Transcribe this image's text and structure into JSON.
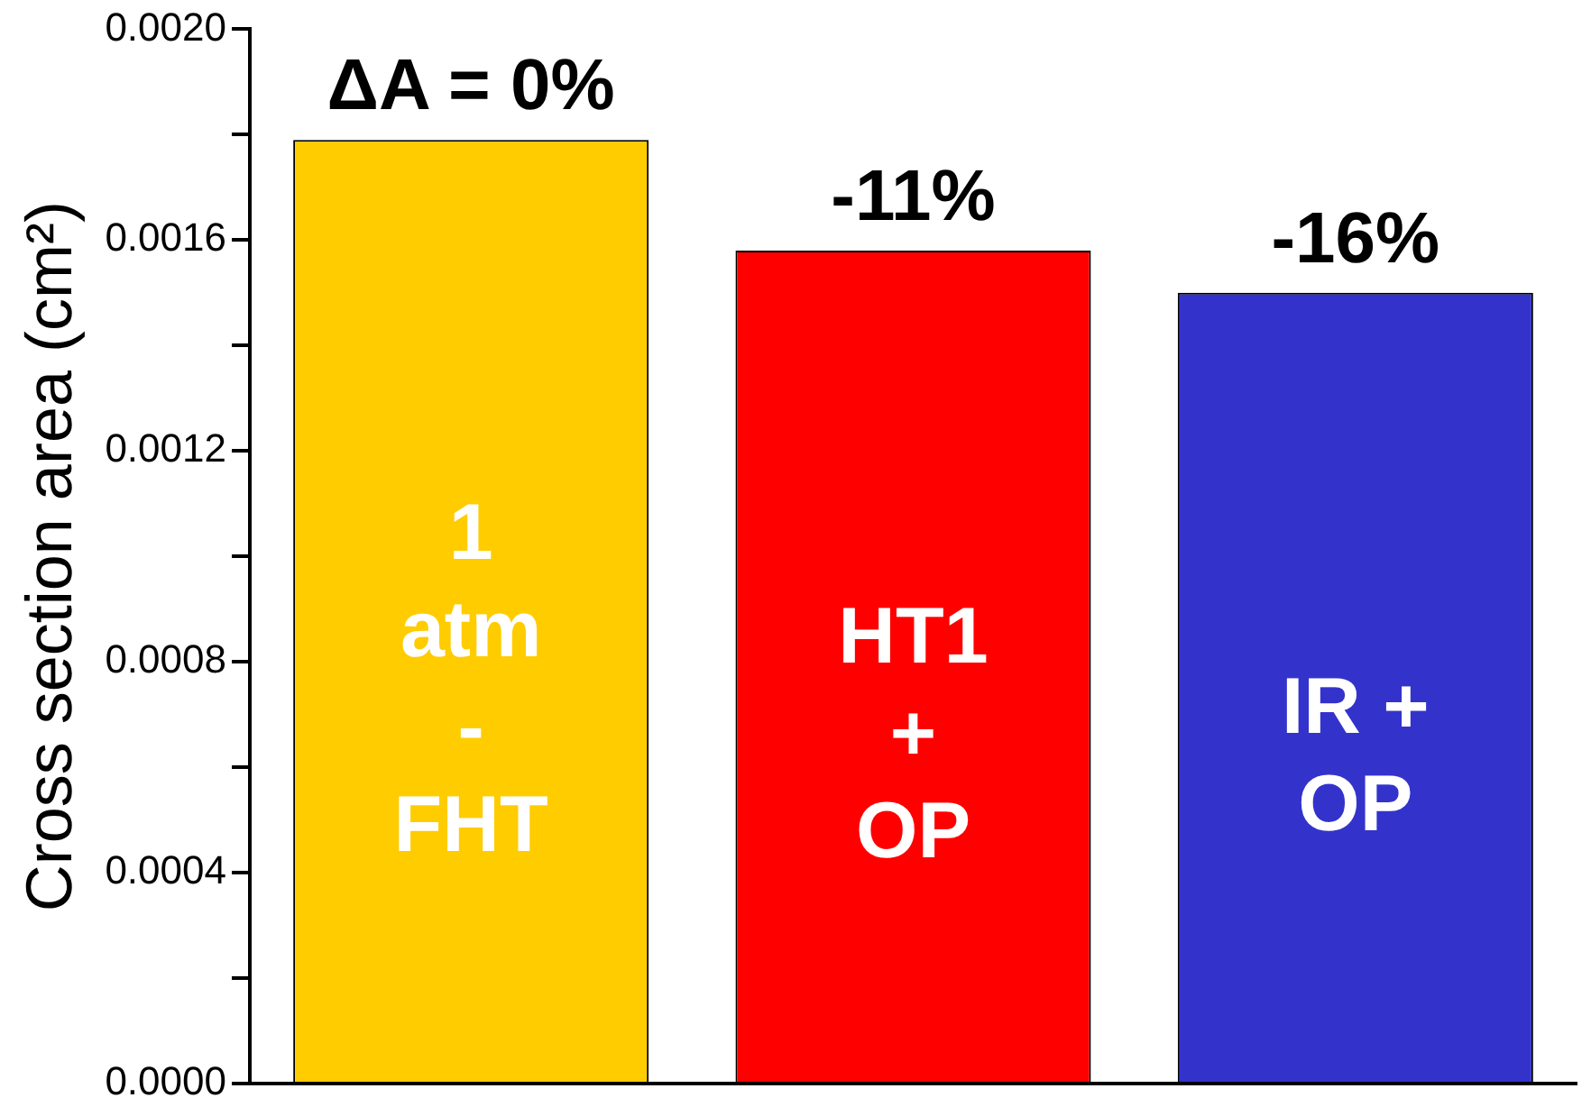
{
  "chart_data": {
    "type": "bar",
    "ylabel": "Cross section area (cm²)",
    "categories": [
      "1 atm - FHT",
      "HT1 + OP",
      "IR + OP"
    ],
    "values": [
      0.00179,
      0.00158,
      0.0015
    ],
    "colors": [
      "#ffcc00",
      "#ff0000",
      "#3333cc"
    ],
    "ylim": [
      0,
      0.002
    ],
    "yticks": [
      "0.0000",
      {
        "value": 0.0002,
        "label": null
      },
      {
        "value": 0.0004,
        "label": "0.0004"
      },
      {
        "value": 0.0006,
        "label": null
      },
      {
        "value": 0.0008,
        "label": "0.0008"
      },
      {
        "value": 0.001,
        "label": null
      },
      {
        "value": 0.0012,
        "label": "0.0012"
      },
      {
        "value": 0.0014,
        "label": null
      },
      {
        "value": 0.0016,
        "label": "0.0016"
      },
      {
        "value": 0.0018,
        "label": null
      },
      {
        "value": 0.002,
        "label": "0.0020"
      }
    ],
    "annotations": [
      {
        "text": "ΔA = 0%",
        "x": "1 atm - FHT",
        "y": 0.00179
      },
      {
        "text": "-11%",
        "x": "HT1 + OP",
        "y": 0.00158
      },
      {
        "text": "-16%",
        "x": "IR + OP",
        "y": 0.0015
      }
    ],
    "grid": false,
    "legend": false,
    "tick_labels": "y"
  }
}
